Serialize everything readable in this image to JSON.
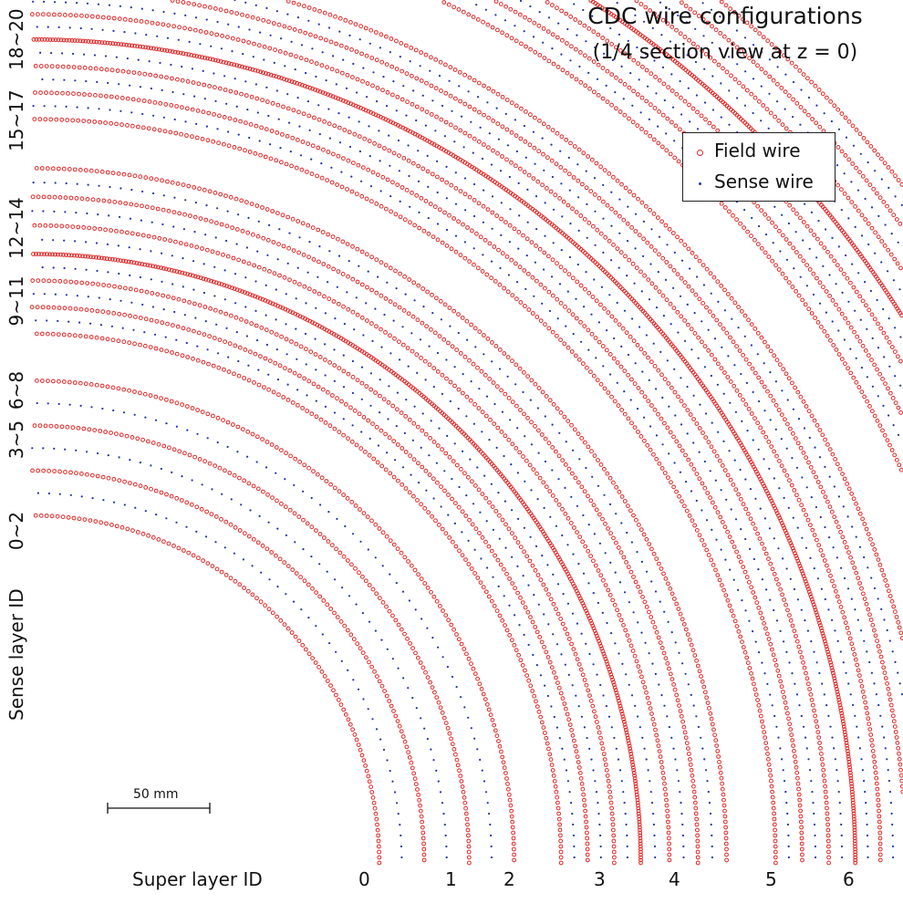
{
  "title": {
    "line1": "CDC wire configurations",
    "line2": "(1/4 section view at z = 0)"
  },
  "legend": {
    "field": "Field wire",
    "sense": "Sense wire"
  },
  "colors": {
    "field": "#e02828",
    "sense": "#2233aa"
  },
  "sense_layer_axis": {
    "title": "Sense layer ID",
    "groups": [
      "0~2",
      "3~5",
      "6~8",
      "9~11",
      "12~14",
      "15~17",
      "18~20"
    ]
  },
  "super_layer_axis": {
    "title": "Super layer ID",
    "ids": [
      "0",
      "1",
      "2",
      "3",
      "4",
      "5",
      "6"
    ]
  },
  "scale_bar": {
    "label": "50 mm",
    "length_mm": 50
  },
  "super_layers": [
    {
      "id": 0,
      "inner_radius_mm": 170,
      "outer_radius_mm": 236,
      "sense_layers": 3
    },
    {
      "id": 1,
      "inner_radius_mm": 259,
      "outer_radius_mm": 298,
      "sense_layers": 3
    },
    {
      "id": 2,
      "inner_radius_mm": 298,
      "outer_radius_mm": 340,
      "sense_layers": 3
    },
    {
      "id": 3,
      "inner_radius_mm": 364,
      "outer_radius_mm": 403,
      "sense_layers": 3
    },
    {
      "id": 4,
      "inner_radius_mm": 403,
      "outer_radius_mm": 440,
      "sense_layers": 3
    },
    {
      "id": 5,
      "inner_radius_mm": 467,
      "outer_radius_mm": 503,
      "sense_layers": 3
    },
    {
      "id": 6,
      "inner_radius_mm": 503,
      "outer_radius_mm": 540,
      "sense_layers": 3
    }
  ]
}
